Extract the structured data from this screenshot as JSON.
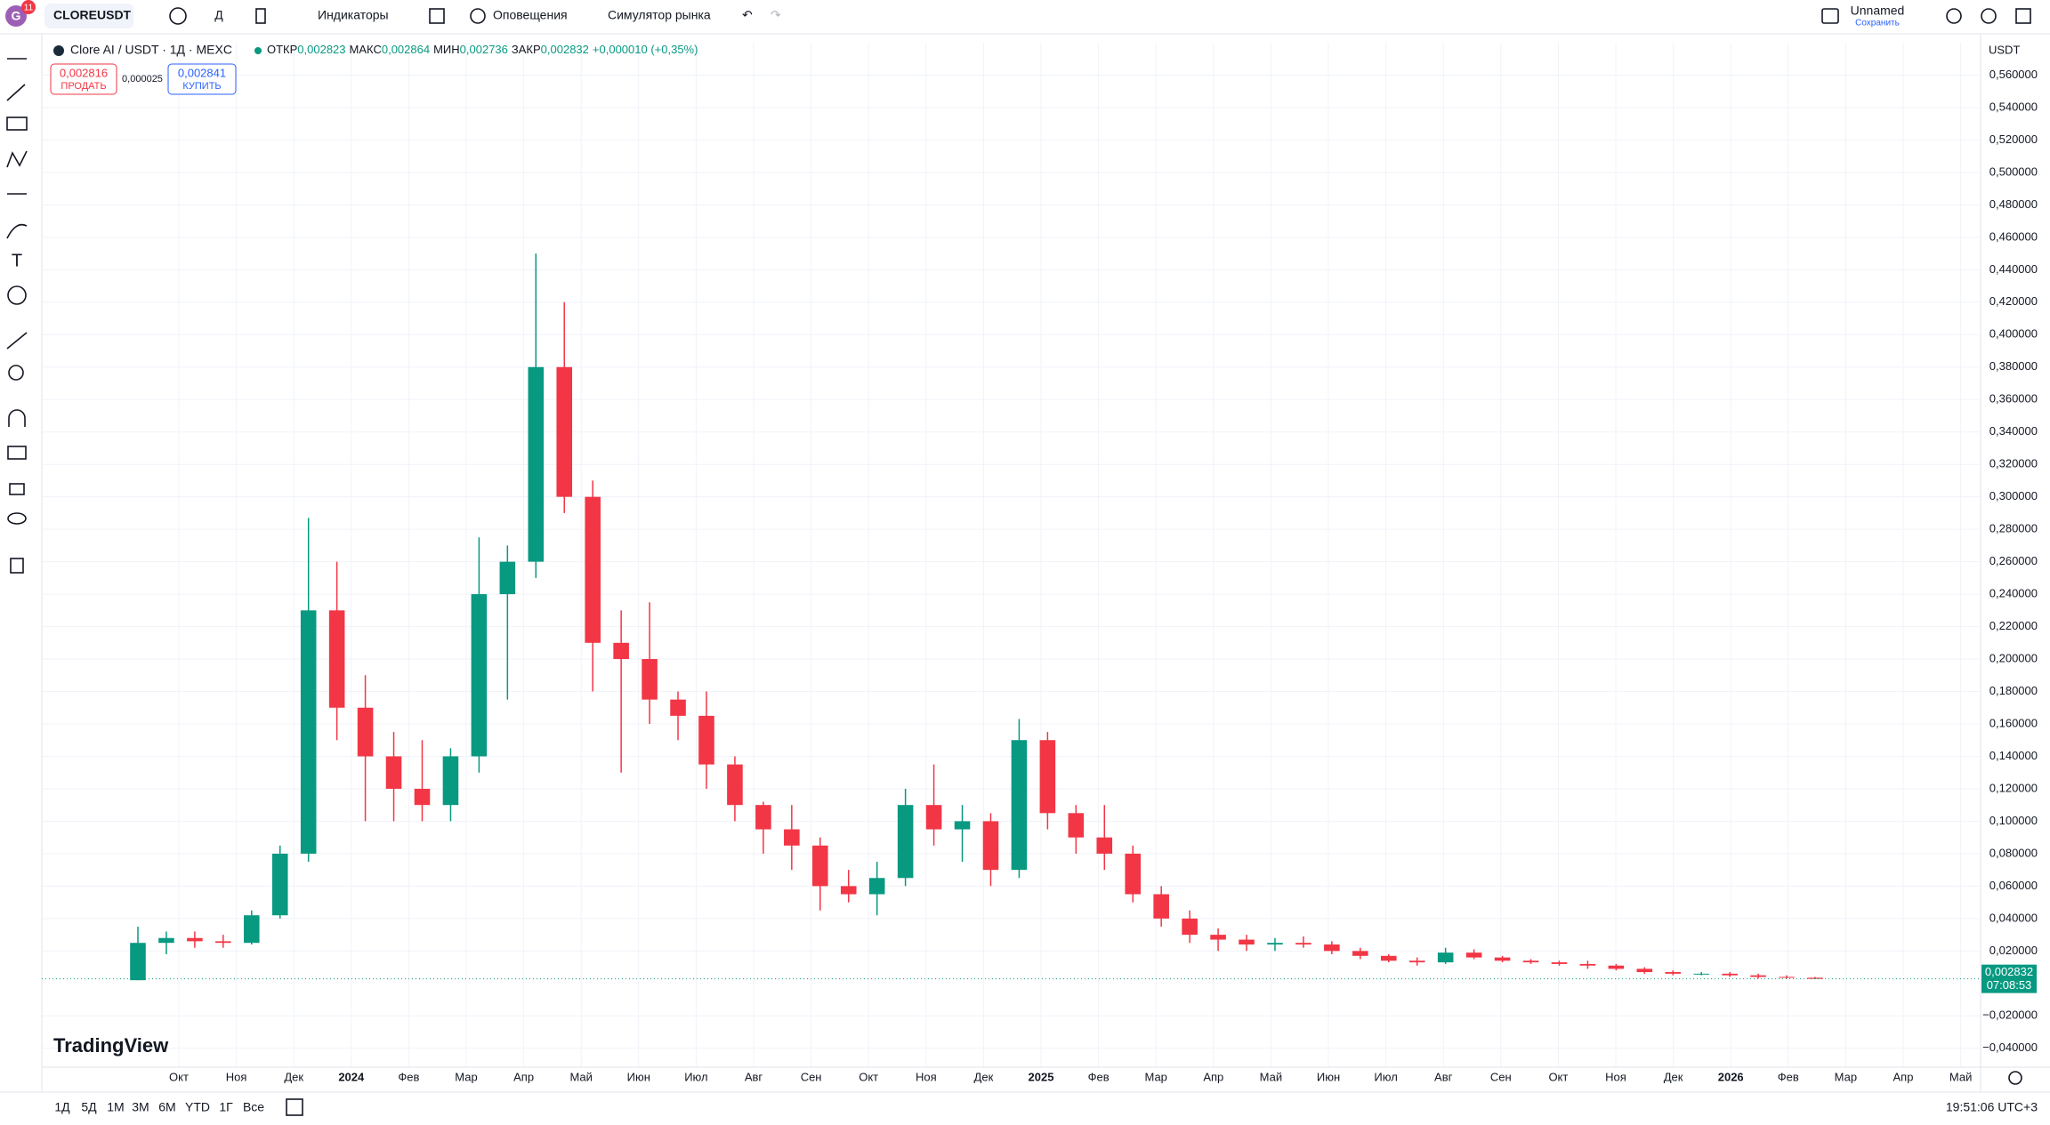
{
  "toolbar": {
    "avatar": "G",
    "badge": "11",
    "symbol": "CLOREUSDT",
    "interval": "Д",
    "indicators": "Индикаторы",
    "alerts": "Оповещения",
    "replay": "Симулятор рынка",
    "layout_name": "Unnamed",
    "save": "Сохранить"
  },
  "legend": {
    "title": "Clore AI / USDT · 1Д · MEXC",
    "open_label": "ОТКР",
    "open": "0,002823",
    "high_label": "МАКС",
    "high": "0,002864",
    "low_label": "МИН",
    "low": "0,002736",
    "close_label": "ЗАКР",
    "close": "0,002832",
    "change": "+0,000010 (+0,35%)"
  },
  "trade": {
    "sell_price": "0,002816",
    "sell": "ПРОДАТЬ",
    "spread": "0,000025",
    "buy_price": "0,002841",
    "buy": "КУПИТЬ"
  },
  "chart_data": {
    "type": "candlestick",
    "currency": "USDT",
    "grid": true,
    "up_color": "#089981",
    "down_color": "#f23645",
    "ylim": [
      -0.05,
      0.58
    ],
    "yticks": [
      {
        "value": 0.56,
        "label": "0,560000"
      },
      {
        "value": 0.54,
        "label": "0,540000"
      },
      {
        "value": 0.52,
        "label": "0,520000"
      },
      {
        "value": 0.5,
        "label": "0,500000"
      },
      {
        "value": 0.48,
        "label": "0,480000"
      },
      {
        "value": 0.46,
        "label": "0,460000"
      },
      {
        "value": 0.44,
        "label": "0,440000"
      },
      {
        "value": 0.42,
        "label": "0,420000"
      },
      {
        "value": 0.4,
        "label": "0,400000"
      },
      {
        "value": 0.38,
        "label": "0,380000"
      },
      {
        "value": 0.36,
        "label": "0,360000"
      },
      {
        "value": 0.34,
        "label": "0,340000"
      },
      {
        "value": 0.32,
        "label": "0,320000"
      },
      {
        "value": 0.3,
        "label": "0,300000"
      },
      {
        "value": 0.28,
        "label": "0,280000"
      },
      {
        "value": 0.26,
        "label": "0,260000"
      },
      {
        "value": 0.24,
        "label": "0,240000"
      },
      {
        "value": 0.22,
        "label": "0,220000"
      },
      {
        "value": 0.2,
        "label": "0,200000"
      },
      {
        "value": 0.18,
        "label": "0,180000"
      },
      {
        "value": 0.16,
        "label": "0,160000"
      },
      {
        "value": 0.14,
        "label": "0,140000"
      },
      {
        "value": 0.12,
        "label": "0,120000"
      },
      {
        "value": 0.1,
        "label": "0,100000"
      },
      {
        "value": 0.08,
        "label": "0,080000"
      },
      {
        "value": 0.06,
        "label": "0,060000"
      },
      {
        "value": 0.04,
        "label": "0,040000"
      },
      {
        "value": 0.02,
        "label": "0,020000"
      },
      {
        "value": -0.02,
        "label": "−0,020000"
      },
      {
        "value": -0.04,
        "label": "−0,040000"
      }
    ],
    "time_labels": [
      "Окт",
      "Ноя",
      "Дек",
      "2024",
      "Фев",
      "Мар",
      "Апр",
      "Май",
      "Июн",
      "Июл",
      "Авг",
      "Сен",
      "Окт",
      "Ноя",
      "Дек",
      "2025",
      "Фев",
      "Мар",
      "Апр",
      "Май",
      "Июн",
      "Июл",
      "Авг",
      "Сен",
      "Окт",
      "Ноя",
      "Дек",
      "2026",
      "Фев",
      "Мар",
      "Апр",
      "Май"
    ],
    "open": [
      0.002,
      0.025,
      0.028,
      0.026,
      0.025,
      0.042,
      0.08,
      0.23,
      0.17,
      0.14,
      0.12,
      0.11,
      0.14,
      0.24,
      0.26,
      0.38,
      0.3,
      0.21,
      0.2,
      0.175,
      0.165,
      0.135,
      0.11,
      0.095,
      0.085,
      0.06,
      0.055,
      0.065,
      0.11,
      0.095,
      0.1,
      0.07,
      0.15,
      0.105,
      0.09,
      0.08,
      0.055,
      0.04,
      0.03,
      0.027,
      0.024,
      0.025,
      0.024,
      0.02,
      0.017,
      0.014,
      0.013,
      0.019,
      0.016,
      0.014,
      0.013,
      0.012,
      0.011,
      0.009,
      0.007,
      0.006,
      0.006,
      0.005,
      0.004,
      0.0035
    ],
    "high": [
      0.035,
      0.032,
      0.032,
      0.03,
      0.045,
      0.085,
      0.287,
      0.26,
      0.19,
      0.155,
      0.15,
      0.145,
      0.275,
      0.27,
      0.45,
      0.42,
      0.31,
      0.23,
      0.235,
      0.18,
      0.18,
      0.14,
      0.112,
      0.11,
      0.09,
      0.07,
      0.075,
      0.12,
      0.135,
      0.11,
      0.105,
      0.163,
      0.155,
      0.11,
      0.11,
      0.085,
      0.06,
      0.045,
      0.034,
      0.03,
      0.028,
      0.029,
      0.026,
      0.022,
      0.018,
      0.016,
      0.022,
      0.021,
      0.017,
      0.015,
      0.014,
      0.014,
      0.012,
      0.01,
      0.008,
      0.007,
      0.007,
      0.006,
      0.005,
      0.004
    ],
    "low": [
      0.002,
      0.018,
      0.022,
      0.022,
      0.024,
      0.04,
      0.075,
      0.15,
      0.1,
      0.1,
      0.1,
      0.1,
      0.13,
      0.175,
      0.25,
      0.29,
      0.18,
      0.13,
      0.16,
      0.15,
      0.12,
      0.1,
      0.08,
      0.07,
      0.045,
      0.05,
      0.042,
      0.06,
      0.085,
      0.075,
      0.06,
      0.065,
      0.095,
      0.08,
      0.07,
      0.05,
      0.035,
      0.025,
      0.02,
      0.02,
      0.02,
      0.022,
      0.018,
      0.015,
      0.013,
      0.011,
      0.012,
      0.015,
      0.013,
      0.012,
      0.011,
      0.009,
      0.008,
      0.006,
      0.005,
      0.005,
      0.004,
      0.003,
      0.003,
      0.0027
    ],
    "close": [
      0.025,
      0.028,
      0.026,
      0.025,
      0.042,
      0.08,
      0.23,
      0.17,
      0.14,
      0.12,
      0.11,
      0.14,
      0.24,
      0.26,
      0.38,
      0.3,
      0.21,
      0.2,
      0.175,
      0.165,
      0.135,
      0.11,
      0.095,
      0.085,
      0.06,
      0.055,
      0.065,
      0.11,
      0.095,
      0.1,
      0.07,
      0.15,
      0.105,
      0.09,
      0.08,
      0.055,
      0.04,
      0.03,
      0.027,
      0.024,
      0.025,
      0.024,
      0.02,
      0.017,
      0.014,
      0.013,
      0.019,
      0.016,
      0.014,
      0.013,
      0.012,
      0.011,
      0.009,
      0.007,
      0.006,
      0.006,
      0.005,
      0.004,
      0.0035,
      0.002832
    ],
    "last_price": {
      "value": 0.002832,
      "label": "0,002832"
    },
    "countdown": "07:08:53",
    "watermark": "TradingView"
  },
  "bottom_bar": {
    "ranges": [
      "1Д",
      "5Д",
      "1М",
      "3М",
      "6М",
      "YTD",
      "1Г",
      "Все"
    ],
    "clock": "19:51:06 UTC+3"
  }
}
